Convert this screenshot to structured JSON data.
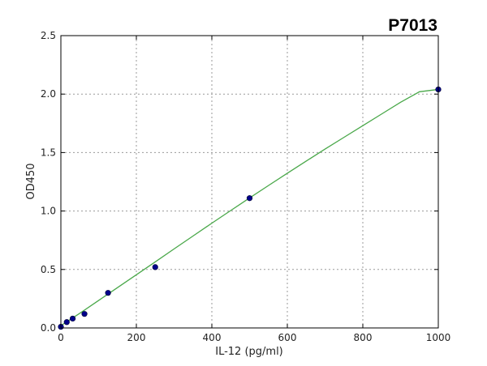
{
  "chart_data": {
    "type": "scatter",
    "title": "P7013",
    "xlabel": "IL-12 (pg/ml)",
    "ylabel": "OD450",
    "xlim": [
      0,
      1000
    ],
    "ylim": [
      0,
      2.5
    ],
    "xticks": [
      0,
      200,
      400,
      600,
      800,
      1000
    ],
    "yticks": [
      0.0,
      0.5,
      1.0,
      1.5,
      2.0,
      2.5
    ],
    "xtick_labels": [
      "0",
      "200",
      "400",
      "600",
      "800",
      "1000"
    ],
    "ytick_labels": [
      "0.0",
      "0.5",
      "1.0",
      "1.5",
      "2.0",
      "2.5"
    ],
    "grid": true,
    "series": [
      {
        "kind": "points",
        "color": "#00008b",
        "x": [
          0,
          15.6,
          31.25,
          62.5,
          125,
          250,
          500,
          1000
        ],
        "y": [
          0.01,
          0.05,
          0.08,
          0.12,
          0.3,
          0.52,
          1.11,
          2.04
        ]
      },
      {
        "kind": "fit-line",
        "color": "#4aa84a",
        "x": [
          0,
          50,
          100,
          150,
          200,
          250,
          300,
          350,
          400,
          450,
          500,
          550,
          600,
          650,
          700,
          750,
          800,
          850,
          900,
          950,
          1000
        ],
        "y": [
          0.02,
          0.125,
          0.235,
          0.345,
          0.455,
          0.565,
          0.676,
          0.786,
          0.896,
          1.004,
          1.112,
          1.218,
          1.323,
          1.427,
          1.53,
          1.63,
          1.73,
          1.83,
          1.93,
          2.02,
          2.04
        ]
      }
    ]
  }
}
